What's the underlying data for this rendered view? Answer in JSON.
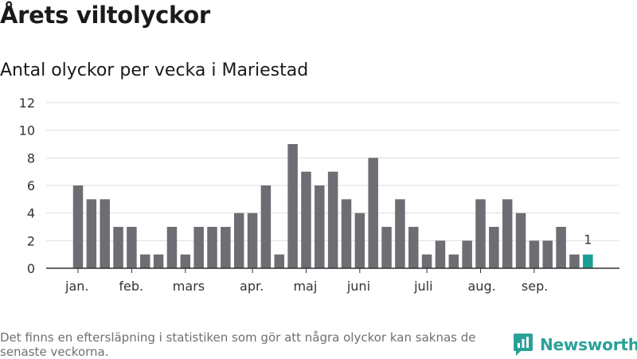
{
  "title": "Årets viltolyckor",
  "subtitle": "Antal olyckor per vecka i Mariestad",
  "footnote": "Det finns en eftersläpning i statistiken som gör att några olyckor kan saknas de senaste veckorna.",
  "brand": {
    "name": "Newsworthy",
    "color": "#2aa198"
  },
  "colors": {
    "bar": "#6e6d73",
    "highlight": "#1a9e95",
    "grid": "#dddddd",
    "axis": "#333333"
  },
  "chart_data": {
    "type": "bar",
    "title": "Antal olyckor per vecka i Mariestad",
    "xlabel": "",
    "ylabel": "",
    "ylim": [
      0,
      12
    ],
    "yticks": [
      0,
      2,
      4,
      6,
      8,
      10,
      12
    ],
    "grid": true,
    "weeks": [
      1,
      2,
      3,
      4,
      5,
      6,
      7,
      8,
      9,
      10,
      11,
      12,
      13,
      14,
      15,
      16,
      17,
      18,
      19,
      20,
      21,
      22,
      23,
      24,
      25,
      26,
      27,
      28,
      29,
      30,
      31,
      32,
      33,
      34,
      35,
      36,
      37,
      38,
      39
    ],
    "values": [
      6,
      5,
      5,
      3,
      3,
      1,
      1,
      3,
      1,
      3,
      3,
      3,
      4,
      4,
      6,
      1,
      9,
      7,
      6,
      7,
      5,
      4,
      8,
      3,
      5,
      3,
      1,
      2,
      1,
      2,
      5,
      3,
      5,
      4,
      2,
      2,
      3,
      1,
      1
    ],
    "highlight_index": 38,
    "highlight_label": "1",
    "month_labels": [
      {
        "label": "jan.",
        "bar_index": 0
      },
      {
        "label": "feb.",
        "bar_index": 4
      },
      {
        "label": "mars",
        "bar_index": 8
      },
      {
        "label": "apr.",
        "bar_index": 13
      },
      {
        "label": "maj",
        "bar_index": 17
      },
      {
        "label": "juni",
        "bar_index": 21
      },
      {
        "label": "juli",
        "bar_index": 26
      },
      {
        "label": "aug.",
        "bar_index": 30
      },
      {
        "label": "sep.",
        "bar_index": 34
      }
    ]
  }
}
